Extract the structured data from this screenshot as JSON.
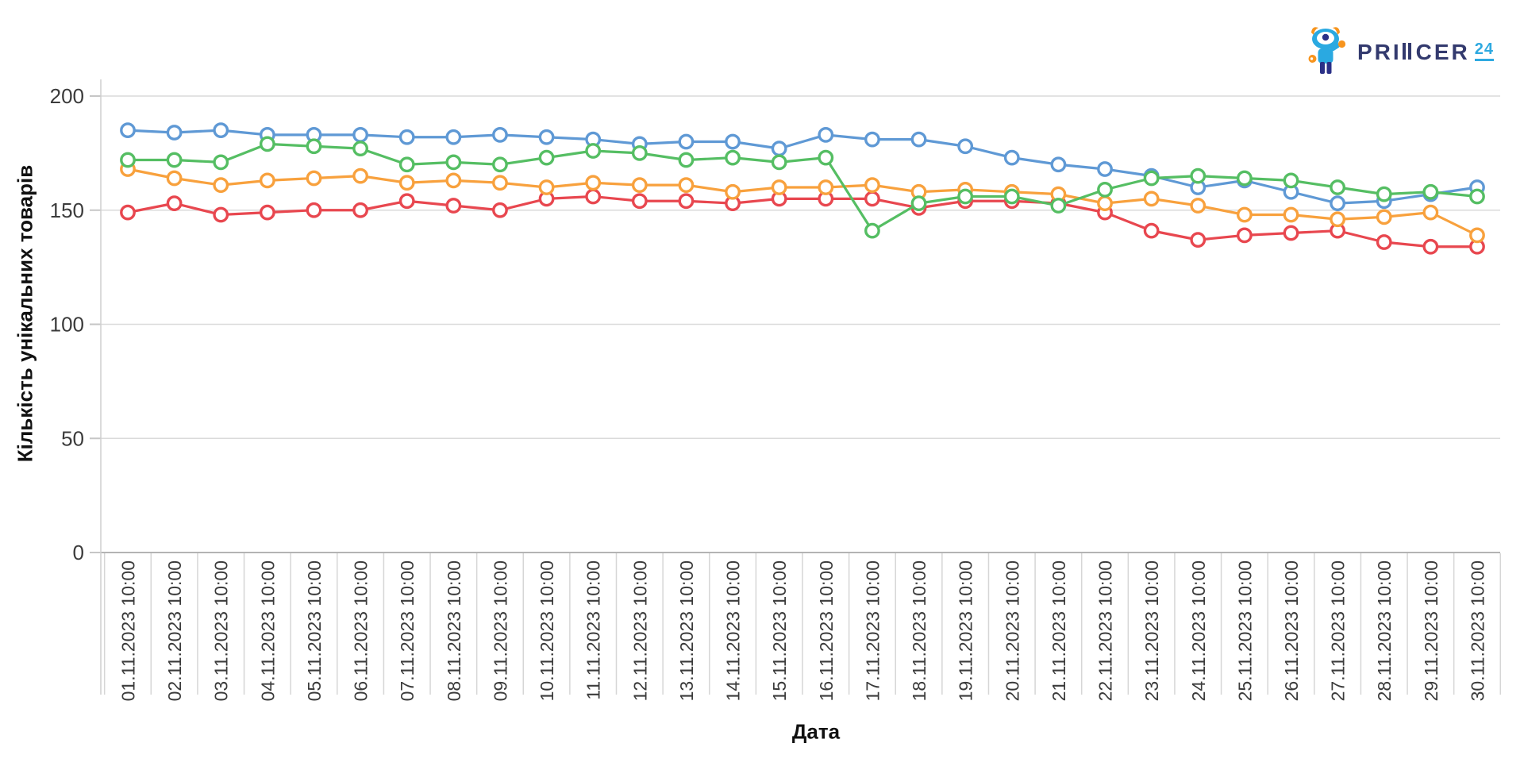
{
  "logo": {
    "text_left": "PR",
    "text_mid": "I",
    "text_right": "CER",
    "suffix": "24",
    "brand_color": "#333a6e",
    "suffix_color": "#2ea9e0",
    "mascot_blue": "#2aa9e1",
    "mascot_navy": "#2b3087",
    "mascot_orange": "#f7941d"
  },
  "chart_data": {
    "type": "line",
    "title": "",
    "xlabel": "Дата",
    "ylabel": "Кількість унікальних товарів",
    "ylim": [
      0,
      200
    ],
    "yticks": [
      0,
      50,
      100,
      150,
      200
    ],
    "grid": true,
    "legend": "none",
    "marker": "open-circle",
    "marker_fill": "#ffffff",
    "categories": [
      "01.11.2023 10:00",
      "02.11.2023 10:00",
      "03.11.2023 10:00",
      "04.11.2023 10:00",
      "05.11.2023 10:00",
      "06.11.2023 10:00",
      "07.11.2023 10:00",
      "08.11.2023 10:00",
      "09.11.2023 10:00",
      "10.11.2023 10:00",
      "11.11.2023 10:00",
      "12.11.2023 10:00",
      "13.11.2023 10:00",
      "14.11.2023 10:00",
      "15.11.2023 10:00",
      "16.11.2023 10:00",
      "17.11.2023 10:00",
      "18.11.2023 10:00",
      "19.11.2023 10:00",
      "20.11.2023 10:00",
      "21.11.2023 10:00",
      "22.11.2023 10:00",
      "23.11.2023 10:00",
      "24.11.2023 10:00",
      "25.11.2023 10:00",
      "26.11.2023 10:00",
      "27.11.2023 10:00",
      "28.11.2023 10:00",
      "29.11.2023 10:00",
      "30.11.2023 10:00"
    ],
    "series": [
      {
        "name": "blue",
        "color": "#5f99d5",
        "values": [
          185,
          184,
          185,
          183,
          183,
          183,
          182,
          182,
          183,
          182,
          181,
          179,
          180,
          180,
          177,
          183,
          181,
          181,
          178,
          173,
          170,
          168,
          165,
          160,
          163,
          158,
          153,
          154,
          157,
          160
        ]
      },
      {
        "name": "red",
        "color": "#e8474f",
        "values": [
          149,
          153,
          148,
          149,
          150,
          150,
          154,
          152,
          150,
          155,
          156,
          154,
          154,
          153,
          155,
          155,
          155,
          151,
          154,
          154,
          153,
          149,
          141,
          137,
          139,
          140,
          141,
          136,
          134,
          134
        ]
      },
      {
        "name": "orange",
        "color": "#f8a13d",
        "values": [
          168,
          164,
          161,
          163,
          164,
          165,
          162,
          163,
          162,
          160,
          162,
          161,
          161,
          158,
          160,
          160,
          161,
          158,
          159,
          158,
          157,
          153,
          155,
          152,
          148,
          148,
          146,
          147,
          149,
          139
        ]
      },
      {
        "name": "green",
        "color": "#55be63",
        "values": [
          172,
          172,
          171,
          179,
          178,
          177,
          170,
          171,
          170,
          173,
          176,
          175,
          172,
          173,
          171,
          173,
          141,
          153,
          156,
          156,
          152,
          159,
          164,
          165,
          164,
          163,
          160,
          157,
          158,
          156
        ]
      }
    ],
    "axis_colors": {
      "gridline": "#dadada",
      "baseline": "#b3b3b3",
      "separator": "#d6d6d6",
      "tick_text": "#3b3b3b"
    }
  }
}
